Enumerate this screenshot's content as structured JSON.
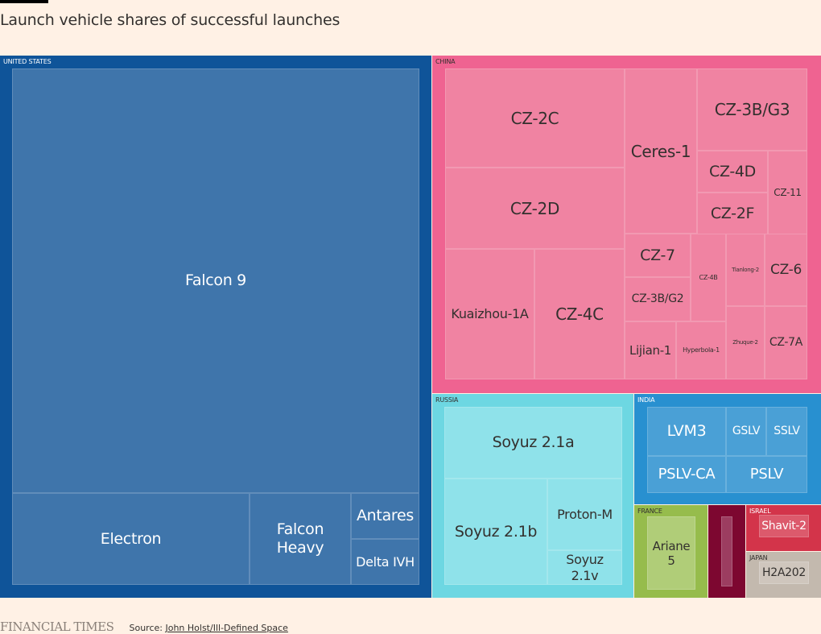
{
  "title": "Launch vehicle shares of successful launches",
  "footer": {
    "brand": "FINANCIAL TIMES",
    "source_prefix": "Source: ",
    "source_link": "John Holst/Ill-Defined Space"
  },
  "chart_data": {
    "type": "treemap",
    "title": "Launch vehicle shares of successful launches",
    "unit": "relative share of successful launches (estimated from tile area)",
    "groups": [
      {
        "name": "United States",
        "color": "#0f5499",
        "leaf_color": "#3f75ab",
        "text_color": "#ffffff",
        "children": [
          {
            "name": "Falcon 9",
            "value": 61
          },
          {
            "name": "Electron",
            "value": 9
          },
          {
            "name": "Falcon Heavy",
            "value": 4
          },
          {
            "name": "Antares",
            "value": 2
          },
          {
            "name": "Delta IVH",
            "value": 2
          }
        ]
      },
      {
        "name": "China",
        "color": "#ef6391",
        "leaf_color": "#f083a2",
        "text_color": "#33302e",
        "children": [
          {
            "name": "CZ-2C",
            "value": 6
          },
          {
            "name": "CZ-2D",
            "value": 6
          },
          {
            "name": "Kuaizhou-1A",
            "value": 4
          },
          {
            "name": "CZ-4C",
            "value": 4
          },
          {
            "name": "Ceres-1",
            "value": 5
          },
          {
            "name": "CZ-3B/G3",
            "value": 4
          },
          {
            "name": "CZ-4D",
            "value": 2
          },
          {
            "name": "CZ-2F",
            "value": 2
          },
          {
            "name": "CZ-11",
            "value": 2
          },
          {
            "name": "CZ-7",
            "value": 2
          },
          {
            "name": "CZ-3B/G2",
            "value": 2
          },
          {
            "name": "CZ-4B",
            "value": 1
          },
          {
            "name": "Tianlong-2",
            "value": 1
          },
          {
            "name": "CZ-6",
            "value": 1
          },
          {
            "name": "Lijian-1",
            "value": 1
          },
          {
            "name": "Hyperbola-1",
            "value": 1
          },
          {
            "name": "Zhuque-2",
            "value": 1
          },
          {
            "name": "CZ-7A",
            "value": 1
          }
        ]
      },
      {
        "name": "Russia",
        "color": "#6dd7e2",
        "leaf_color": "#8fe2ea",
        "text_color": "#33302e",
        "children": [
          {
            "name": "Soyuz 2.1a",
            "value": 8
          },
          {
            "name": "Soyuz 2.1b",
            "value": 6
          },
          {
            "name": "Proton-M",
            "value": 2
          },
          {
            "name": "Soyuz 2.1v",
            "value": 1
          }
        ]
      },
      {
        "name": "India",
        "color": "#2890d0",
        "leaf_color": "#4aa0d6",
        "text_color": "#ffffff",
        "children": [
          {
            "name": "LVM3",
            "value": 2
          },
          {
            "name": "GSLV",
            "value": 1
          },
          {
            "name": "SSLV",
            "value": 1
          },
          {
            "name": "PSLV-CA",
            "value": 1
          },
          {
            "name": "PSLV",
            "value": 1
          }
        ]
      },
      {
        "name": "France",
        "color": "#96bc4c",
        "leaf_color": "#b0cd78",
        "text_color": "#33302e",
        "children": [
          {
            "name": "Ariane 5",
            "value": 1
          }
        ]
      },
      {
        "name": "",
        "color": "#7d0730",
        "leaf_color": "#9c3d60",
        "text_color": "#ffffff",
        "children": [
          {
            "name": "",
            "value": 1
          }
        ]
      },
      {
        "name": "Israel",
        "color": "#d3344a",
        "leaf_color": "#dc5a6c",
        "text_color": "#ffffff",
        "children": [
          {
            "name": "Shavit-2",
            "value": 0.5
          }
        ]
      },
      {
        "name": "Japan",
        "color": "#c3b9ae",
        "leaf_color": "#cfc6bd",
        "text_color": "#33302e",
        "children": [
          {
            "name": "H2A202",
            "value": 0.5
          }
        ]
      }
    ]
  }
}
